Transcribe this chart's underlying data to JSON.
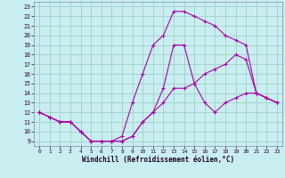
{
  "xlabel": "Windchill (Refroidissement éolien,°C)",
  "bg_color": "#c8eef0",
  "grid_color": "#a0d0c8",
  "line_color": "#aa00aa",
  "spine_color": "#8888aa",
  "xlim": [
    -0.5,
    23.5
  ],
  "ylim": [
    8.5,
    23.5
  ],
  "xticks": [
    0,
    1,
    2,
    3,
    4,
    5,
    6,
    7,
    8,
    9,
    10,
    11,
    12,
    13,
    14,
    15,
    16,
    17,
    18,
    19,
    20,
    21,
    22,
    23
  ],
  "yticks": [
    9,
    10,
    11,
    12,
    13,
    14,
    15,
    16,
    17,
    18,
    19,
    20,
    21,
    22,
    23
  ],
  "line1_x": [
    0,
    1,
    2,
    3,
    4,
    5,
    6,
    7,
    8,
    9,
    10,
    11,
    12,
    13,
    14,
    15,
    16,
    17,
    18,
    19,
    20,
    21,
    22,
    23
  ],
  "line1_y": [
    12,
    11.5,
    11,
    11,
    10,
    9,
    9,
    9,
    9,
    9.5,
    11,
    12,
    13,
    14.5,
    14.5,
    15,
    16,
    16.5,
    17,
    18,
    17.5,
    14,
    13.5,
    13
  ],
  "line2_x": [
    0,
    1,
    2,
    3,
    4,
    5,
    6,
    7,
    8,
    9,
    10,
    11,
    12,
    13,
    14,
    15,
    16,
    17,
    18,
    19,
    20,
    21,
    22,
    23
  ],
  "line2_y": [
    12,
    11.5,
    11,
    11,
    10,
    9,
    9,
    9,
    9.5,
    13,
    16,
    19,
    20,
    22.5,
    22.5,
    22,
    21.5,
    21,
    20,
    19.5,
    19,
    14,
    13.5,
    13
  ],
  "line3_x": [
    0,
    1,
    2,
    3,
    4,
    5,
    6,
    7,
    8,
    9,
    10,
    11,
    12,
    13,
    14,
    15,
    16,
    17,
    18,
    19,
    20,
    21,
    22,
    23
  ],
  "line3_y": [
    12,
    11.5,
    11,
    11,
    10,
    9,
    9,
    9,
    9,
    9.5,
    11,
    12,
    14.5,
    19,
    19,
    15,
    13,
    12,
    13,
    13.5,
    14,
    14,
    13.5,
    13
  ]
}
